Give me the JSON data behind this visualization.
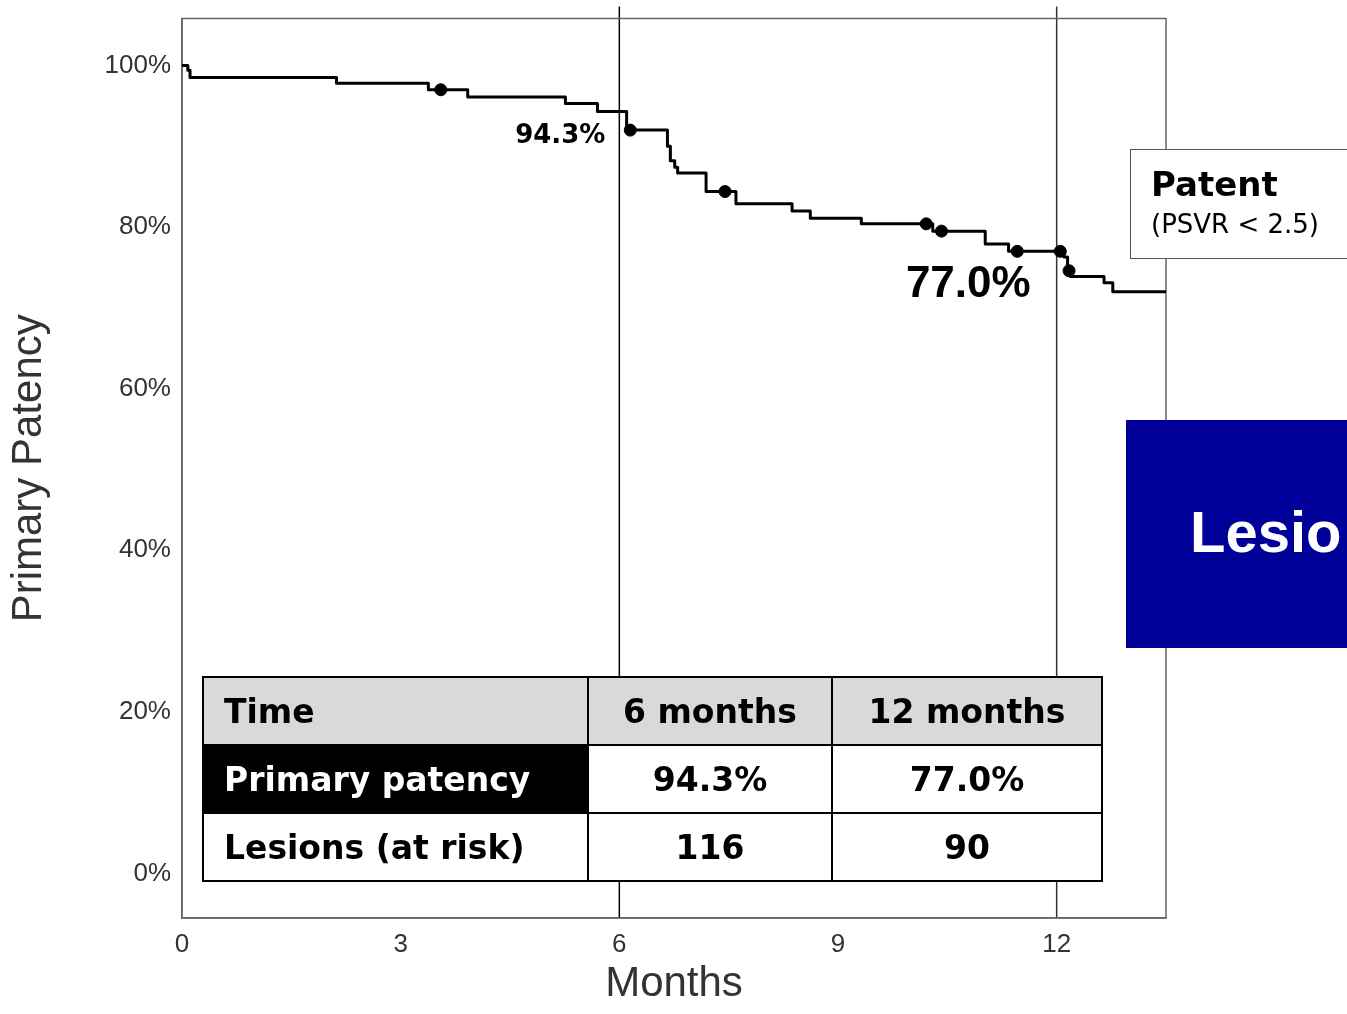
{
  "chart_data": {
    "type": "step",
    "xlabel": "Months",
    "ylabel": "Primary Patency",
    "xlim": [
      0,
      13.5
    ],
    "ylim": [
      -5.5,
      105.8
    ],
    "xticks": [
      0,
      3,
      6,
      9,
      12
    ],
    "yticks": [
      {
        "value": 0,
        "label": "0%"
      },
      {
        "value": 20,
        "label": "20%"
      },
      {
        "value": 40,
        "label": "40%"
      },
      {
        "value": 60,
        "label": "60%"
      },
      {
        "value": 80,
        "label": "80%"
      },
      {
        "value": 100,
        "label": "100%"
      }
    ],
    "grid": false,
    "legend": false,
    "ref_lines": [
      {
        "axis": "x",
        "value": 6,
        "color": "#000000"
      },
      {
        "axis": "x",
        "value": 12,
        "color": "#333333"
      }
    ],
    "series": [
      {
        "color": "#000000",
        "x": [
          0,
          0.08,
          0.11,
          2.12,
          3.38,
          3.92,
          5.26,
          5.7,
          6.1,
          6.66,
          6.7,
          6.76,
          6.8,
          7.19,
          7.6,
          8.37,
          8.62,
          9.32,
          10.3,
          11.02,
          11.34,
          12.1,
          12.15,
          12.19,
          12.65,
          12.77,
          13.5
        ],
        "values": [
          100,
          99.4,
          98.5,
          97.8,
          97.0,
          96.1,
          95.3,
          94.3,
          92.0,
          90.0,
          88.2,
          87.4,
          86.7,
          84.4,
          82.9,
          82.0,
          81.1,
          80.4,
          79.5,
          77.9,
          77.0,
          76.3,
          74.6,
          73.9,
          73.1,
          72.0,
          72.0
        ]
      },
      {
        "type": "scatter",
        "marker": "circle",
        "color": "#000000",
        "x": [
          3.55,
          6.15,
          7.45,
          10.21,
          10.42,
          11.46,
          12.05,
          12.17
        ],
        "values": [
          97.0,
          92.0,
          84.4,
          80.4,
          79.5,
          77.0,
          77.0,
          74.6
        ]
      }
    ],
    "annotations": [
      {
        "text": "94.3%",
        "x": 6,
        "y": 94.3
      },
      {
        "text": "77.0%",
        "x": 12,
        "y": 77.0
      },
      "Patent",
      "(PSVR < 2.5)",
      "Time",
      "6 months",
      "12 months",
      "Primary patency",
      "94.3%",
      "77.0%",
      "Lesions (at risk)",
      "116",
      "90",
      "Lesio"
    ]
  }
}
